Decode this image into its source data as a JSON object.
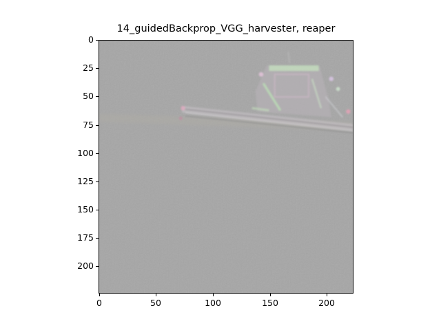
{
  "figure": {
    "title": "14_guidedBackprop_VGG_harvester, reaper",
    "image_subject": "guided backpropagation saliency map of a combine harvester on a field",
    "background_color": "#a5a5a5",
    "x_ticks": [
      "0",
      "50",
      "100",
      "150",
      "200"
    ],
    "y_ticks": [
      "0",
      "25",
      "50",
      "75",
      "100",
      "125",
      "150",
      "175",
      "200"
    ],
    "x_range": [
      0,
      224
    ],
    "y_range": [
      0,
      224
    ]
  }
}
